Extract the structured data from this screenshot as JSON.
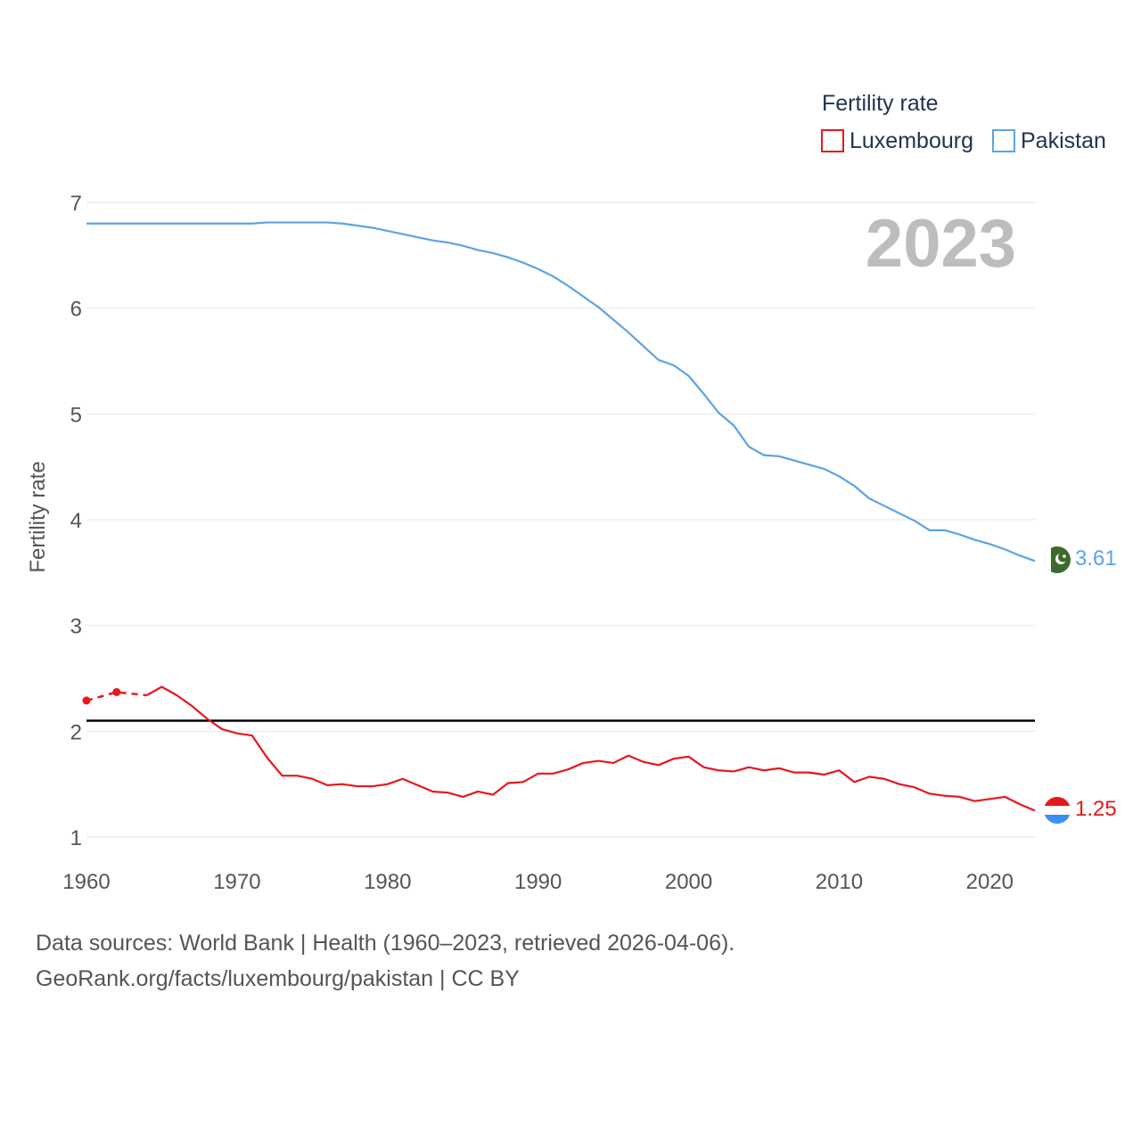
{
  "chart_data": {
    "type": "line",
    "legend_title": "Fertility rate",
    "ylabel": "Fertility rate",
    "year_label": "2023",
    "xlim": [
      1960,
      2023
    ],
    "ylim": [
      1,
      7
    ],
    "x_ticks": [
      1960,
      1970,
      1980,
      1990,
      2000,
      2010,
      2020
    ],
    "y_ticks": [
      1,
      2,
      3,
      4,
      5,
      6,
      7
    ],
    "reference_line": 2.1,
    "years": [
      1960,
      1961,
      1962,
      1963,
      1964,
      1965,
      1966,
      1967,
      1968,
      1969,
      1970,
      1971,
      1972,
      1973,
      1974,
      1975,
      1976,
      1977,
      1978,
      1979,
      1980,
      1981,
      1982,
      1983,
      1984,
      1985,
      1986,
      1987,
      1988,
      1989,
      1990,
      1991,
      1992,
      1993,
      1994,
      1995,
      1996,
      1997,
      1998,
      1999,
      2000,
      2001,
      2002,
      2003,
      2004,
      2005,
      2006,
      2007,
      2008,
      2009,
      2010,
      2011,
      2012,
      2013,
      2014,
      2015,
      2016,
      2017,
      2018,
      2019,
      2020,
      2021,
      2022,
      2023
    ],
    "series": [
      {
        "name": "Luxembourg",
        "color": "#e8161e",
        "end_label": "1.25",
        "gap_years": [
          1960,
          1962
        ],
        "values": [
          2.29,
          null,
          2.37,
          null,
          2.34,
          2.42,
          2.34,
          2.24,
          2.12,
          2.02,
          1.98,
          1.96,
          1.75,
          1.58,
          1.58,
          1.55,
          1.49,
          1.5,
          1.48,
          1.48,
          1.5,
          1.55,
          1.49,
          1.43,
          1.42,
          1.38,
          1.43,
          1.4,
          1.51,
          1.52,
          1.6,
          1.6,
          1.64,
          1.7,
          1.72,
          1.7,
          1.77,
          1.71,
          1.68,
          1.74,
          1.76,
          1.66,
          1.63,
          1.62,
          1.66,
          1.63,
          1.65,
          1.61,
          1.61,
          1.59,
          1.63,
          1.52,
          1.57,
          1.55,
          1.5,
          1.47,
          1.41,
          1.39,
          1.38,
          1.34,
          1.36,
          1.38,
          1.31,
          1.25
        ]
      },
      {
        "name": "Pakistan",
        "color": "#5ba3e4",
        "end_label": "3.61",
        "values": [
          6.8,
          6.8,
          6.8,
          6.8,
          6.8,
          6.8,
          6.8,
          6.8,
          6.8,
          6.8,
          6.8,
          6.8,
          6.81,
          6.81,
          6.81,
          6.81,
          6.81,
          6.8,
          6.78,
          6.76,
          6.73,
          6.7,
          6.67,
          6.64,
          6.62,
          6.59,
          6.55,
          6.52,
          6.48,
          6.43,
          6.37,
          6.3,
          6.21,
          6.11,
          6.01,
          5.89,
          5.77,
          5.64,
          5.51,
          5.46,
          5.36,
          5.19,
          5.01,
          4.89,
          4.69,
          4.61,
          4.6,
          4.56,
          4.52,
          4.48,
          4.41,
          4.32,
          4.2,
          4.13,
          4.06,
          3.99,
          3.9,
          3.9,
          3.86,
          3.81,
          3.77,
          3.72,
          3.66,
          3.61
        ]
      }
    ]
  },
  "source_lines": [
    "Data sources: World Bank | Health (1960–2023, retrieved 2026-04-06).",
    "GeoRank.org/facts/luxembourg/pakistan | CC BY"
  ]
}
